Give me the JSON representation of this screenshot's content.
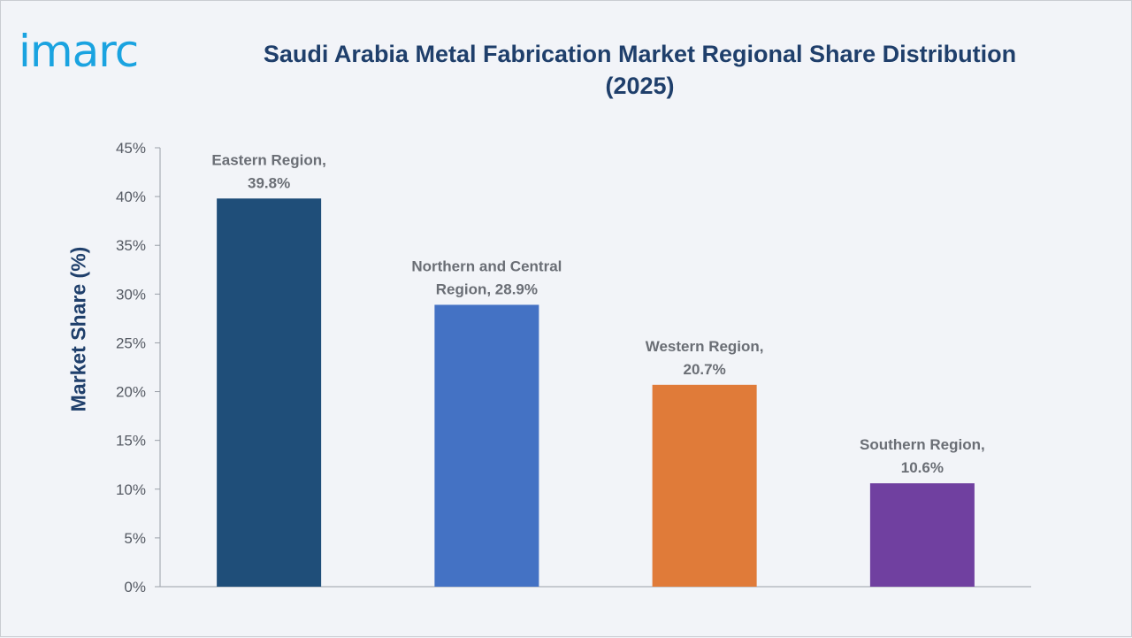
{
  "brand": {
    "logo_text": "imarc",
    "logo_color": "#1aa3e0"
  },
  "title": "Saudi Arabia Metal Fabrication Market Regional Share Distribution (2025)",
  "chart_data": {
    "type": "bar",
    "title": "Saudi Arabia Metal Fabrication Market Regional Share Distribution (2025)",
    "xlabel": "",
    "ylabel": "Market Share (%)",
    "ylim": [
      0,
      45
    ],
    "ytick_step": 5,
    "ytick_labels": [
      "0%",
      "5%",
      "10%",
      "15%",
      "20%",
      "25%",
      "30%",
      "35%",
      "40%",
      "45%"
    ],
    "grid": false,
    "legend": "none",
    "categories": [
      "Eastern Region",
      "Northern and Central Region",
      "Western Region",
      "Southern Region"
    ],
    "values": [
      39.8,
      28.9,
      20.7,
      10.6
    ],
    "data_labels": [
      [
        "Eastern Region,",
        "39.8%"
      ],
      [
        "Northern and Central",
        "Region, 28.9%"
      ],
      [
        "Western Region,",
        "20.7%"
      ],
      [
        "Southern Region,",
        "10.6%"
      ]
    ],
    "colors": [
      "#1f4e79",
      "#4472c4",
      "#e07b39",
      "#7040a0"
    ]
  }
}
